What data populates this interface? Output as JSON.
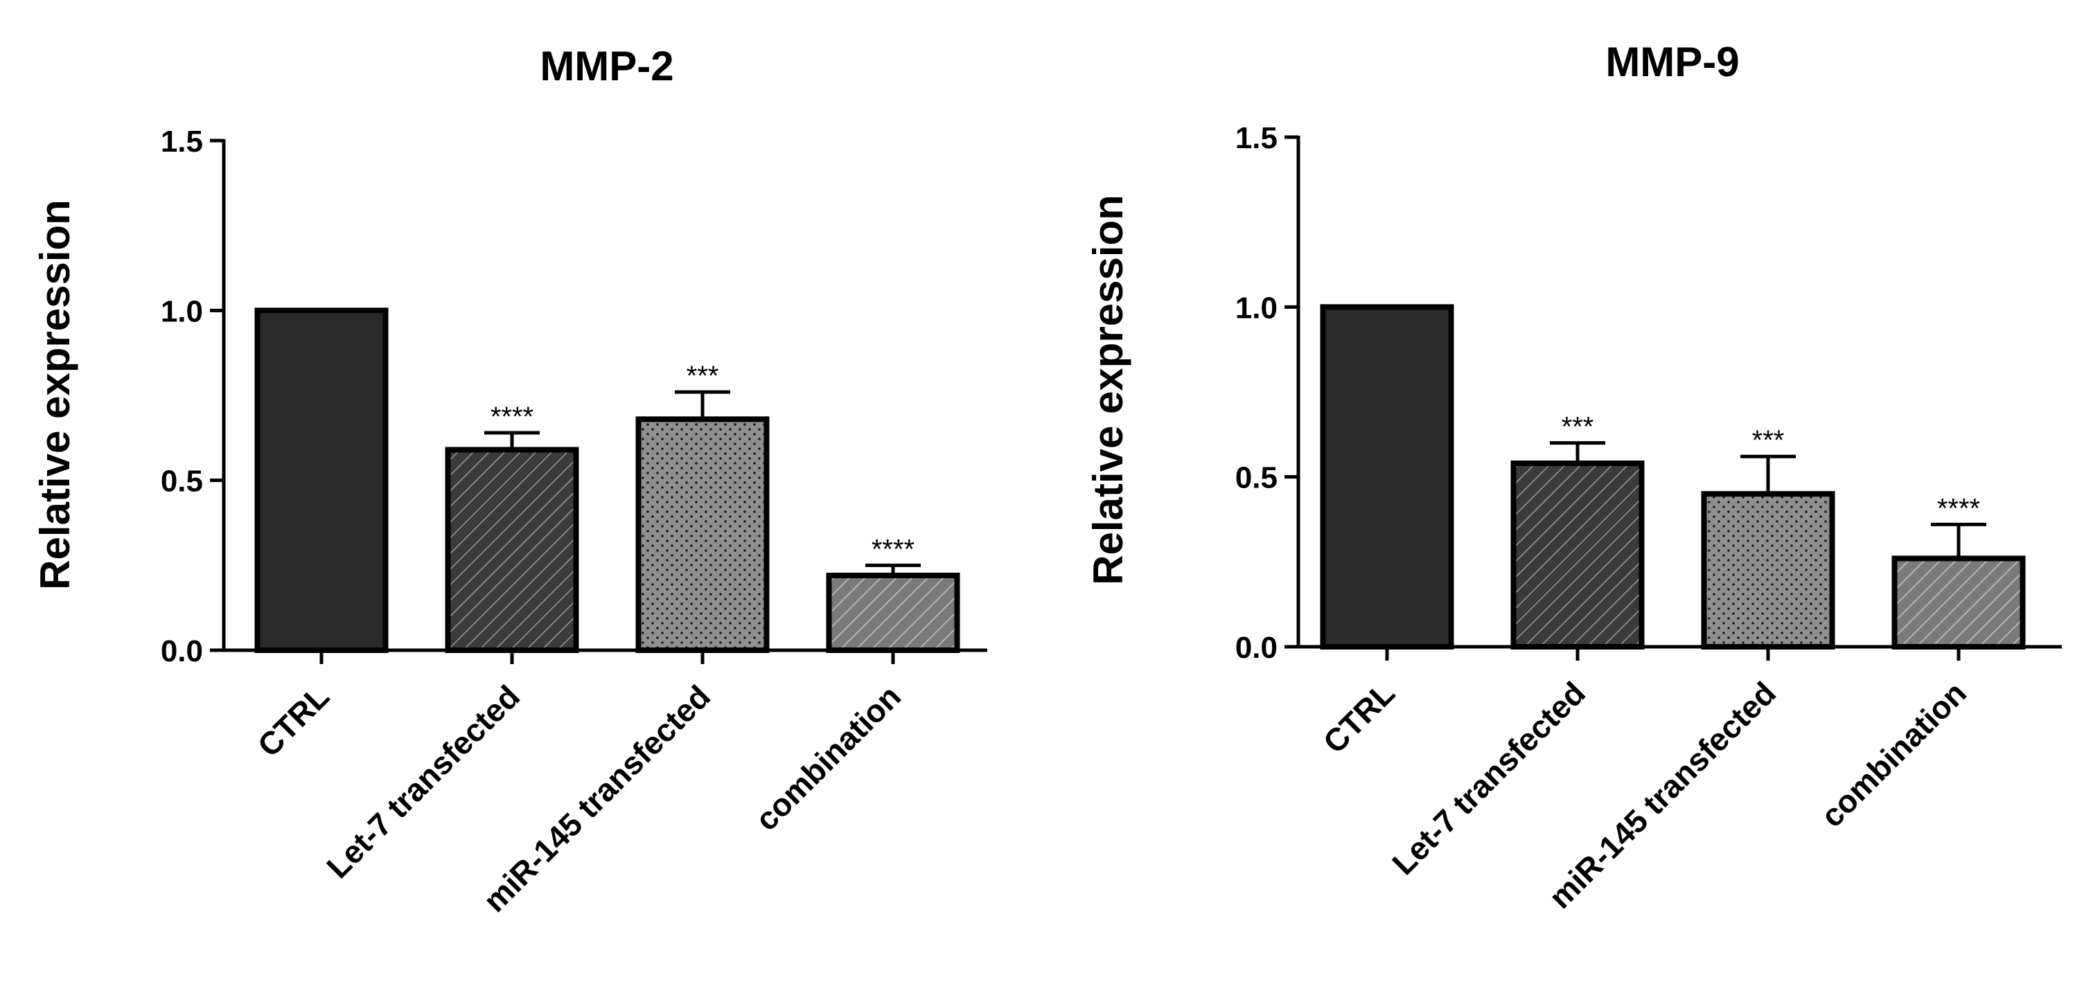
{
  "colors": {
    "ctrl": "#2b2b2b",
    "let7": "#3d3d3d",
    "mir145": "#8f8f8f",
    "combination": "#7a7a7a",
    "axis": "#000000"
  },
  "chart_data": [
    {
      "type": "bar",
      "title": "MMP-2",
      "xlabel": "",
      "ylabel": "Relative expression",
      "ylim": [
        0,
        1.5
      ],
      "yticks": [
        "0.0",
        "0.5",
        "1.0",
        "1.5"
      ],
      "grid": false,
      "categories": [
        "CTRL",
        "Let-7 transfected",
        "miR-145 transfected",
        "combination"
      ],
      "values": [
        1.0,
        0.59,
        0.68,
        0.22
      ],
      "errors": [
        0,
        0.05,
        0.08,
        0.03
      ],
      "significance": [
        "",
        "****",
        "***",
        "****"
      ],
      "patterns": [
        "solid",
        "hatch-dark",
        "dots",
        "hatch-light"
      ]
    },
    {
      "type": "bar",
      "title": "MMP-9",
      "xlabel": "",
      "ylabel": "Relative expression",
      "ylim": [
        0,
        1.5
      ],
      "yticks": [
        "0.0",
        "0.5",
        "1.0",
        "1.5"
      ],
      "grid": false,
      "categories": [
        "CTRL",
        "Let-7 transfected",
        "miR-145 transfected",
        "combination"
      ],
      "values": [
        1.0,
        0.54,
        0.45,
        0.26
      ],
      "errors": [
        0,
        0.06,
        0.11,
        0.1
      ],
      "significance": [
        "",
        "***",
        "***",
        "****"
      ],
      "patterns": [
        "solid",
        "hatch-dark",
        "dots",
        "hatch-light"
      ]
    }
  ]
}
